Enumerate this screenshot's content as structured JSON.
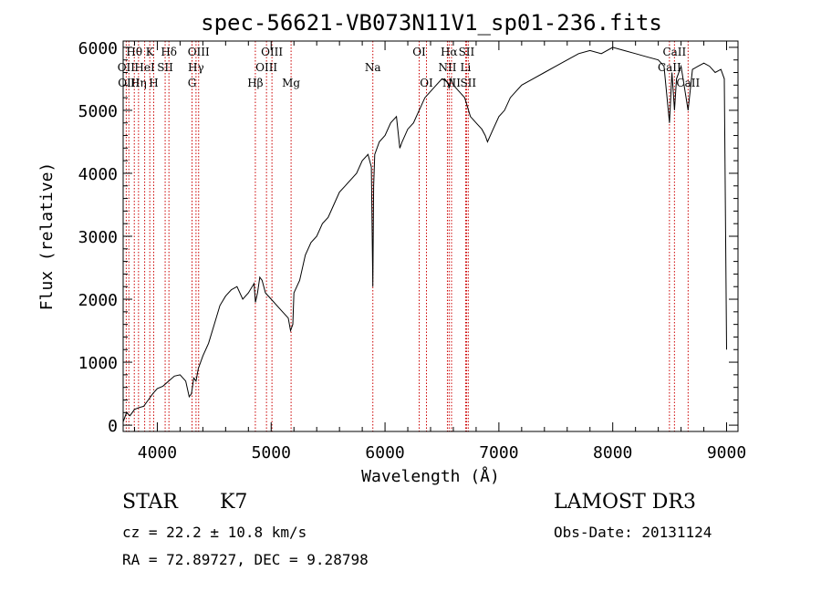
{
  "chart_data": {
    "type": "line",
    "title": "spec-56621-VB073N11V1_sp01-236.fits",
    "xlabel": "Wavelength (Å)",
    "ylabel": "Flux (relative)",
    "xlim": [
      3700,
      9100
    ],
    "ylim": [
      -100,
      6100
    ],
    "xticks": [
      4000,
      5000,
      6000,
      7000,
      8000,
      9000
    ],
    "yticks": [
      0,
      1000,
      2000,
      3000,
      4000,
      5000,
      6000
    ],
    "xtick_labels": [
      "4000",
      "5000",
      "6000",
      "7000",
      "8000",
      "9000"
    ],
    "ytick_labels": [
      "0",
      "1000",
      "2000",
      "3000",
      "4000",
      "5000",
      "6000"
    ],
    "series": [
      {
        "name": "spectrum",
        "color": "#000000",
        "x": [
          3700,
          3730,
          3760,
          3800,
          3840,
          3880,
          3920,
          3960,
          4000,
          4050,
          4100,
          4150,
          4200,
          4250,
          4280,
          4300,
          4320,
          4340,
          4360,
          4400,
          4450,
          4500,
          4550,
          4600,
          4650,
          4700,
          4750,
          4800,
          4850,
          4862,
          4880,
          4900,
          4920,
          4950,
          5000,
          5050,
          5100,
          5150,
          5170,
          5190,
          5200,
          5250,
          5300,
          5350,
          5400,
          5450,
          5500,
          5550,
          5600,
          5650,
          5700,
          5750,
          5800,
          5850,
          5880,
          5893,
          5900,
          5910,
          5950,
          6000,
          6050,
          6100,
          6130,
          6150,
          6200,
          6250,
          6300,
          6350,
          6400,
          6450,
          6500,
          6550,
          6563,
          6580,
          6600,
          6650,
          6700,
          6750,
          6800,
          6850,
          6880,
          6900,
          6950,
          7000,
          7050,
          7100,
          7150,
          7200,
          7300,
          7400,
          7500,
          7600,
          7700,
          7800,
          7900,
          8000,
          8100,
          8200,
          8300,
          8400,
          8450,
          8498,
          8520,
          8542,
          8560,
          8600,
          8662,
          8700,
          8750,
          8800,
          8850,
          8900,
          8950,
          8980,
          9000
        ],
        "y": [
          50,
          200,
          150,
          250,
          280,
          300,
          400,
          500,
          580,
          620,
          700,
          780,
          800,
          700,
          450,
          500,
          750,
          700,
          900,
          1100,
          1300,
          1600,
          1900,
          2050,
          2150,
          2200,
          2000,
          2100,
          2250,
          1950,
          2100,
          2350,
          2300,
          2100,
          2000,
          1900,
          1800,
          1700,
          1500,
          1600,
          2100,
          2300,
          2700,
          2900,
          3000,
          3200,
          3300,
          3500,
          3700,
          3800,
          3900,
          4000,
          4200,
          4300,
          4100,
          2200,
          3800,
          4300,
          4500,
          4600,
          4800,
          4900,
          4400,
          4500,
          4700,
          4800,
          5000,
          5200,
          5300,
          5400,
          5500,
          5450,
          5350,
          5500,
          5400,
          5300,
          5200,
          4900,
          4800,
          4700,
          4600,
          4500,
          4700,
          4900,
          5000,
          5200,
          5300,
          5400,
          5500,
          5600,
          5700,
          5800,
          5900,
          5950,
          5900,
          6000,
          5950,
          5900,
          5850,
          5800,
          5700,
          4800,
          5600,
          5000,
          5500,
          5700,
          5000,
          5650,
          5700,
          5750,
          5700,
          5600,
          5650,
          5500,
          1200
        ]
      }
    ],
    "spectral_lines": [
      {
        "label": "Hθ",
        "x": 3798,
        "row": 0
      },
      {
        "label": "OII",
        "x": 3727,
        "row": 1
      },
      {
        "label": "OIII",
        "x": 3750,
        "row": 2
      },
      {
        "label": "K",
        "x": 3934,
        "row": 0
      },
      {
        "label": "HeI",
        "x": 3889,
        "row": 1
      },
      {
        "label": "Hη",
        "x": 3835,
        "row": 2
      },
      {
        "label": "SII",
        "x": 4069,
        "row": 1
      },
      {
        "label": "H",
        "x": 3968,
        "row": 2
      },
      {
        "label": "Hδ",
        "x": 4102,
        "row": 0
      },
      {
        "label": "OIII",
        "x": 4363,
        "row": 0
      },
      {
        "label": "Hγ",
        "x": 4340,
        "row": 1
      },
      {
        "label": "G",
        "x": 4305,
        "row": 2
      },
      {
        "label": "Hβ",
        "x": 4861,
        "row": 2
      },
      {
        "label": "OIII",
        "x": 5007,
        "row": 0
      },
      {
        "label": "OIII",
        "x": 4959,
        "row": 1
      },
      {
        "label": "Mg",
        "x": 5175,
        "row": 2
      },
      {
        "label": "Na",
        "x": 5893,
        "row": 1
      },
      {
        "label": "OI",
        "x": 6300,
        "row": 0
      },
      {
        "label": "OI",
        "x": 6364,
        "row": 2
      },
      {
        "label": "Hα",
        "x": 6563,
        "row": 0
      },
      {
        "label": "SII",
        "x": 6716,
        "row": 0
      },
      {
        "label": "NII",
        "x": 6548,
        "row": 1
      },
      {
        "label": "Li",
        "x": 6708,
        "row": 1
      },
      {
        "label": "NII",
        "x": 6584,
        "row": 2
      },
      {
        "label": "SII",
        "x": 6731,
        "row": 2
      },
      {
        "label": "CaII",
        "x": 8542,
        "row": 0
      },
      {
        "label": "CaII",
        "x": 8498,
        "row": 1
      },
      {
        "label": "CaII",
        "x": 8662,
        "row": 2
      }
    ],
    "line_color": "#cc0000"
  },
  "info": {
    "class": "STAR",
    "subclass": "K7",
    "survey": "LAMOST DR3",
    "cz": "cz = 22.2 ± 10.8 km/s",
    "obs_date": "Obs-Date: 20131124",
    "radec": "RA =  72.89727, DEC =   9.28798"
  }
}
